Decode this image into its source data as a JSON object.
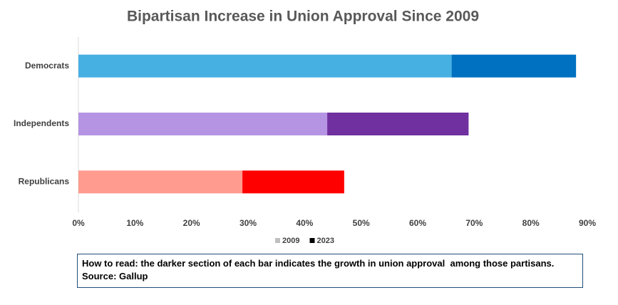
{
  "chart_data": {
    "type": "stacked-barh",
    "title": "Bipartisan Increase in Union Approval Since 2009",
    "categories": [
      "Democrats",
      "Independents",
      "Republicans"
    ],
    "series": [
      {
        "name": "2009",
        "color": "#bfbfbf",
        "colors": [
          "#47b0e3",
          "#b594e3",
          "#ff9b8f"
        ],
        "values": [
          66,
          44,
          29
        ]
      },
      {
        "name": "2023",
        "color": "#000000",
        "colors": [
          "#0070c0",
          "#7030a0",
          "#ff0000"
        ],
        "values": [
          22,
          25,
          18
        ]
      }
    ],
    "xlim": [
      0,
      90
    ],
    "xticks": [
      {
        "value": 0,
        "label": "0%"
      },
      {
        "value": 10,
        "label": "10%"
      },
      {
        "value": 20,
        "label": "20%"
      },
      {
        "value": 30,
        "label": "30%"
      },
      {
        "value": 40,
        "label": "40%"
      },
      {
        "value": 50,
        "label": "50%"
      },
      {
        "value": 60,
        "label": "60%"
      },
      {
        "value": 70,
        "label": "70%"
      },
      {
        "value": 80,
        "label": "80%"
      },
      {
        "value": 90,
        "label": "90%"
      }
    ],
    "grid": false,
    "legend": "bottom",
    "note": "How to read: the darker section of each bar indicates the growth in union approval  among those partisans. Source: Gallup"
  }
}
